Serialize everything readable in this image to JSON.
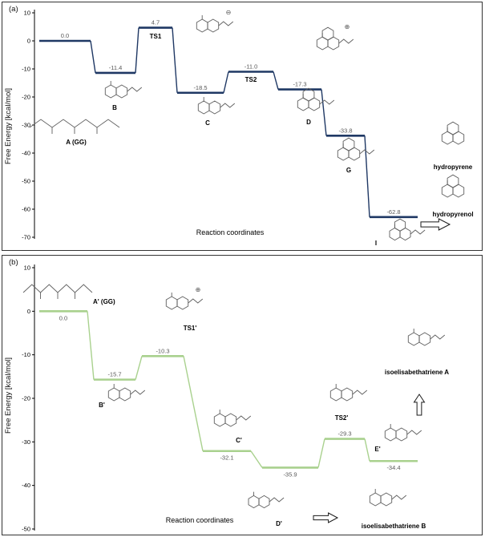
{
  "chart_data": [
    {
      "type": "line",
      "subtype": "energy-profile",
      "panel_label": "(a)",
      "xlabel": "Reaction coordinates",
      "ylabel": "Free Energy [kcal/mol]",
      "ylim": [
        -70,
        10
      ],
      "ytick_step": 10,
      "line_color": "#1f3864",
      "states": [
        {
          "label": "A (GG)",
          "energy": 0.0
        },
        {
          "label": "B",
          "energy": -11.4
        },
        {
          "label": "TS1",
          "energy": 4.7
        },
        {
          "label": "C",
          "energy": -18.5
        },
        {
          "label": "TS2",
          "energy": -11.0
        },
        {
          "label": "D",
          "energy": -17.3
        },
        {
          "label": "G",
          "energy": -33.8
        },
        {
          "label": "I",
          "energy": -62.8
        }
      ],
      "products": [
        "hydropyrene",
        "hydropyrenol"
      ]
    },
    {
      "type": "line",
      "subtype": "energy-profile",
      "panel_label": "(b)",
      "xlabel": "Reaction coordinates",
      "ylabel": "Free Energy [kcal/mol]",
      "ylim": [
        -50,
        10
      ],
      "ytick_step": 10,
      "line_color": "#a9d18e",
      "states": [
        {
          "label": "A' (GG)",
          "energy": 0.0
        },
        {
          "label": "B'",
          "energy": -15.7
        },
        {
          "label": "TS1'",
          "energy": -10.3
        },
        {
          "label": "C'",
          "energy": -32.1
        },
        {
          "label": "D'",
          "energy": -35.9
        },
        {
          "label": "TS2'",
          "energy": -29.3
        },
        {
          "label": "E'",
          "energy": -34.4
        }
      ],
      "products": [
        "isoelisabethatriene A",
        "isoelisabethatriene B"
      ]
    }
  ],
  "symbols": {
    "plus": "⊕",
    "minus": "⊖"
  }
}
